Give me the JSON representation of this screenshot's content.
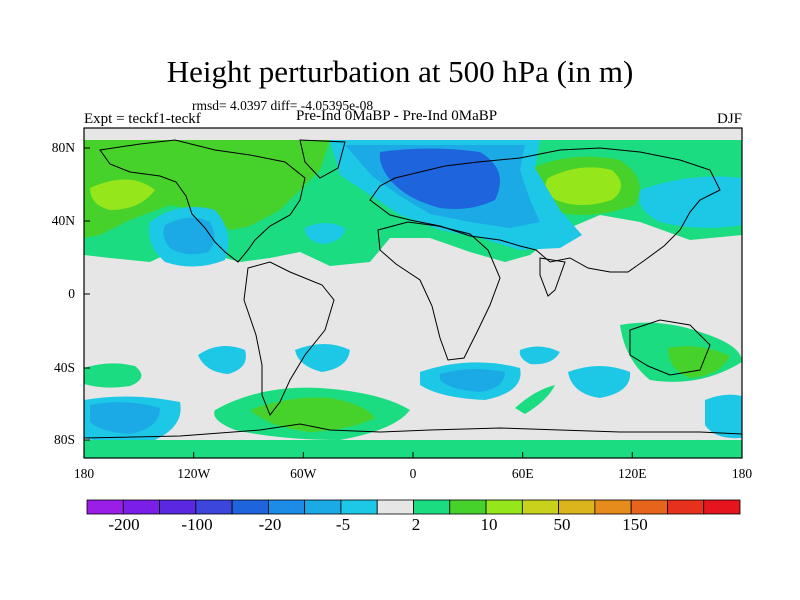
{
  "title": "Height perturbation at 500 hPa (in m)",
  "stats_line": "rmsd= 4.0397 diff= -4.05395e-08",
  "left_label": "Expt = teckf1-teckf",
  "center_label": "Pre-Ind 0MaBP - Pre-Ind 0MaBP",
  "right_label": "DJF",
  "map": {
    "y_ticks": [
      "80N",
      "40N",
      "0",
      "40S",
      "80S"
    ],
    "x_ticks": [
      "180",
      "120W",
      "60W",
      "0",
      "60E",
      "120E",
      "180"
    ]
  },
  "colorbar": {
    "labels": [
      "-200",
      "-100",
      "-20",
      "-5",
      "2",
      "10",
      "50",
      "150"
    ],
    "colors": [
      "#9b1ee8",
      "#7a1ee8",
      "#5a28e0",
      "#3c46dc",
      "#1e64dc",
      "#1c8ce6",
      "#1caae6",
      "#1cc8e6",
      "#e6e6e6",
      "#1cdc82",
      "#46d22a",
      "#96e61c",
      "#c8d21c",
      "#dcb41c",
      "#e68c1c",
      "#e6641c",
      "#e6321c",
      "#e6141c"
    ]
  },
  "field_colors": {
    "background": "#e6e6e6",
    "light_blue": "#1cc8e6",
    "mid_blue": "#1caae6",
    "blue": "#1c8ce6",
    "dark_blue": "#1e64dc",
    "green": "#1cdc82",
    "bright_green": "#46d22a",
    "yellow_green": "#96e61c"
  }
}
